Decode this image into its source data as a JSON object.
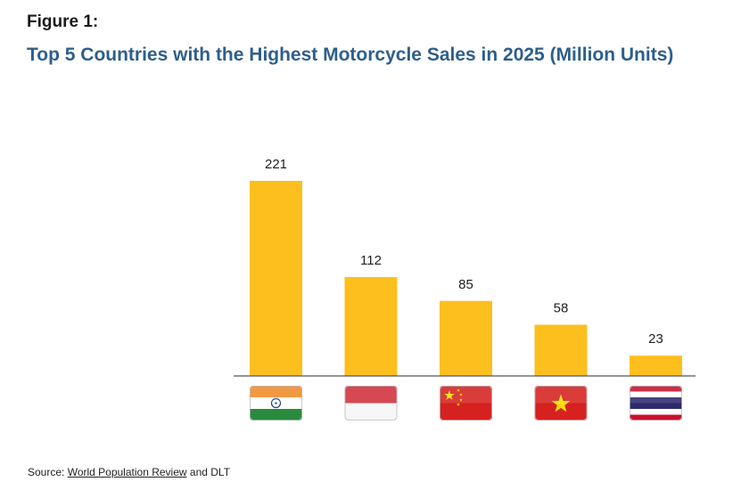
{
  "figure_label": "Figure 1:",
  "title": "Top 5 Countries with the Highest Motorcycle Sales in 2025 (Million Units)",
  "source": {
    "prefix": "Source: ",
    "link_text": "World Population Review",
    "suffix": " and DLT"
  },
  "colors": {
    "bar": "#fdbf1e",
    "axis": "#555555",
    "title": "#2e5f8a"
  },
  "chart_data": {
    "type": "bar",
    "categories": [
      "India",
      "Indonesia",
      "China",
      "Vietnam",
      "Thailand"
    ],
    "category_icons": [
      "india-flag-icon",
      "indonesia-flag-icon",
      "china-flag-icon",
      "vietnam-flag-icon",
      "thailand-flag-icon"
    ],
    "values": [
      221,
      112,
      85,
      58,
      23
    ],
    "data_labels": [
      "221",
      "112",
      "85",
      "58",
      "23"
    ],
    "title": "Top 5 Countries with the Highest Motorcycle Sales in 2025 (Million Units)",
    "xlabel": "",
    "ylabel": "",
    "ylim": [
      0,
      221
    ],
    "grid": false,
    "legend": "none"
  }
}
